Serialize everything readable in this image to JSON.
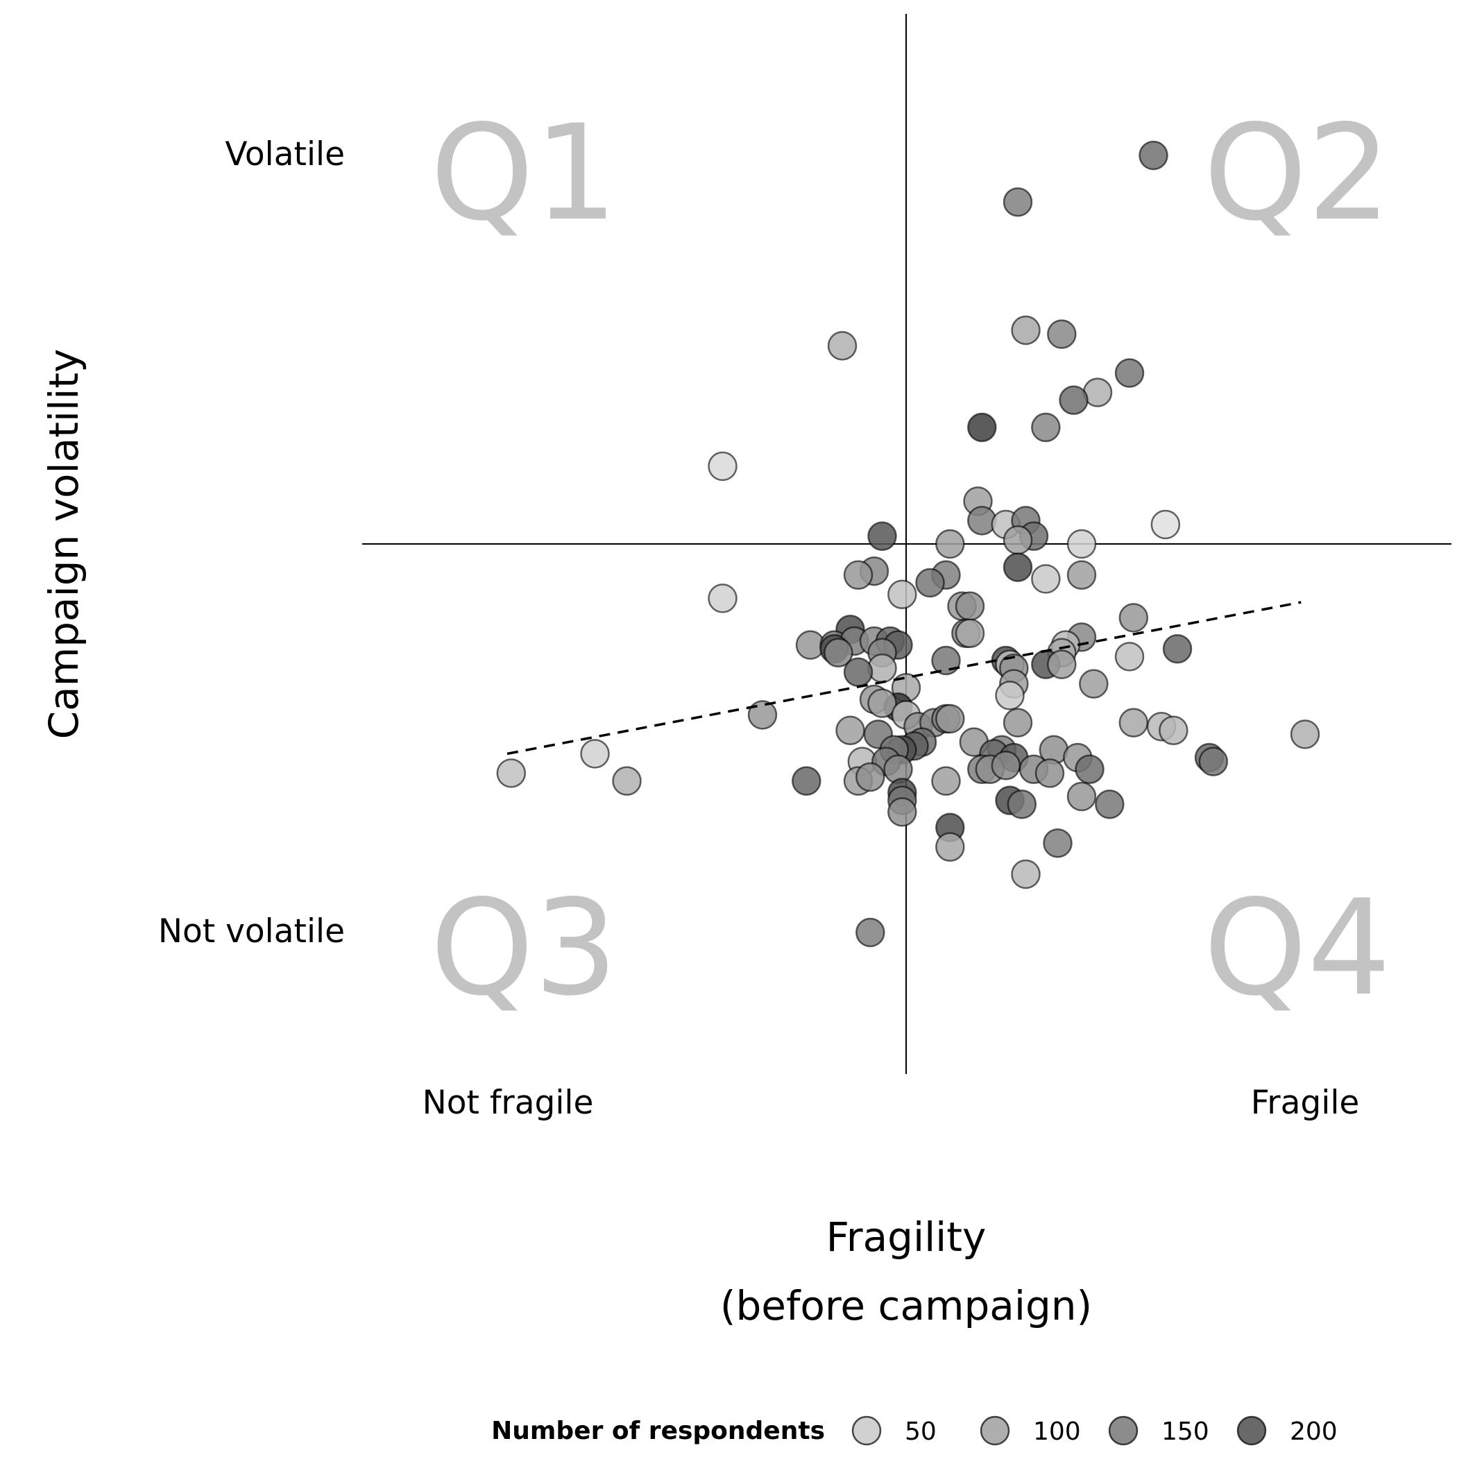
{
  "chart_data": {
    "type": "scatter",
    "title": "",
    "xlabel_line1": "Fragility",
    "xlabel_line2": "(before campaign)",
    "ylabel": "Campaign volatility",
    "x_low_label": "Not fragile",
    "x_high_label": "Fragile",
    "y_high_label": "Volatile",
    "y_low_label": "Not volatile",
    "xlim": [
      -1,
      1
    ],
    "ylim": [
      -1,
      1
    ],
    "grid": false,
    "reference_lines": {
      "x": 0,
      "y": 0
    },
    "quadrants": [
      {
        "label": "Q1",
        "position": "top-left"
      },
      {
        "label": "Q2",
        "position": "top-right"
      },
      {
        "label": "Q3",
        "position": "bottom-left"
      },
      {
        "label": "Q4",
        "position": "bottom-right"
      }
    ],
    "trend_line": {
      "style": "dashed",
      "x": [
        -1.0,
        0.99
      ],
      "y": [
        -0.54,
        -0.15
      ]
    },
    "legend": {
      "title": "Number of respondents",
      "position": "bottom",
      "items": [
        {
          "label": "50",
          "value": 50
        },
        {
          "label": "100",
          "value": 100
        },
        {
          "label": "150",
          "value": 150
        },
        {
          "label": "200",
          "value": 200
        }
      ]
    },
    "points": [
      {
        "x": 0.62,
        "y": 1.0,
        "n": 160
      },
      {
        "x": 0.28,
        "y": 0.88,
        "n": 140
      },
      {
        "x": 0.3,
        "y": 0.55,
        "n": 90
      },
      {
        "x": 0.39,
        "y": 0.54,
        "n": 130
      },
      {
        "x": 0.56,
        "y": 0.44,
        "n": 150
      },
      {
        "x": -0.16,
        "y": 0.51,
        "n": 80
      },
      {
        "x": 0.48,
        "y": 0.39,
        "n": 80
      },
      {
        "x": 0.42,
        "y": 0.37,
        "n": 160
      },
      {
        "x": 0.19,
        "y": 0.3,
        "n": 220
      },
      {
        "x": 0.35,
        "y": 0.3,
        "n": 130
      },
      {
        "x": -0.46,
        "y": 0.2,
        "n": 30
      },
      {
        "x": 0.18,
        "y": 0.11,
        "n": 100
      },
      {
        "x": 0.19,
        "y": 0.06,
        "n": 140
      },
      {
        "x": 0.25,
        "y": 0.05,
        "n": 60
      },
      {
        "x": 0.3,
        "y": 0.06,
        "n": 150
      },
      {
        "x": 0.32,
        "y": 0.02,
        "n": 160
      },
      {
        "x": 0.65,
        "y": 0.05,
        "n": 20
      },
      {
        "x": 0.28,
        "y": 0.01,
        "n": 100
      },
      {
        "x": 0.44,
        "y": 0.0,
        "n": 40
      },
      {
        "x": 0.11,
        "y": 0.0,
        "n": 100
      },
      {
        "x": -0.06,
        "y": 0.02,
        "n": 190
      },
      {
        "x": 0.28,
        "y": -0.06,
        "n": 200
      },
      {
        "x": -0.08,
        "y": -0.07,
        "n": 130
      },
      {
        "x": -0.12,
        "y": -0.08,
        "n": 110
      },
      {
        "x": 0.1,
        "y": -0.08,
        "n": 140
      },
      {
        "x": 0.35,
        "y": -0.09,
        "n": 50
      },
      {
        "x": 0.44,
        "y": -0.08,
        "n": 100
      },
      {
        "x": 0.06,
        "y": -0.1,
        "n": 150
      },
      {
        "x": -0.01,
        "y": -0.13,
        "n": 60
      },
      {
        "x": -0.46,
        "y": -0.14,
        "n": 40
      },
      {
        "x": 0.14,
        "y": -0.16,
        "n": 110
      },
      {
        "x": 0.16,
        "y": -0.16,
        "n": 120
      },
      {
        "x": 0.57,
        "y": -0.19,
        "n": 110
      },
      {
        "x": 0.15,
        "y": -0.23,
        "n": 130
      },
      {
        "x": 0.16,
        "y": -0.23,
        "n": 90
      },
      {
        "x": -0.14,
        "y": -0.22,
        "n": 200
      },
      {
        "x": -0.24,
        "y": -0.26,
        "n": 110
      },
      {
        "x": -0.18,
        "y": -0.26,
        "n": 150
      },
      {
        "x": -0.13,
        "y": -0.25,
        "n": 140
      },
      {
        "x": -0.08,
        "y": -0.25,
        "n": 130
      },
      {
        "x": -0.04,
        "y": -0.25,
        "n": 170
      },
      {
        "x": -0.02,
        "y": -0.26,
        "n": 180
      },
      {
        "x": -0.18,
        "y": -0.27,
        "n": 200
      },
      {
        "x": -0.17,
        "y": -0.28,
        "n": 130
      },
      {
        "x": -0.06,
        "y": -0.28,
        "n": 130
      },
      {
        "x": 0.44,
        "y": -0.24,
        "n": 130
      },
      {
        "x": 0.4,
        "y": -0.26,
        "n": 70
      },
      {
        "x": 0.68,
        "y": -0.27,
        "n": 170
      },
      {
        "x": 0.39,
        "y": -0.28,
        "n": 90
      },
      {
        "x": 0.56,
        "y": -0.29,
        "n": 60
      },
      {
        "x": 0.1,
        "y": -0.3,
        "n": 150
      },
      {
        "x": 0.25,
        "y": -0.3,
        "n": 200
      },
      {
        "x": 0.35,
        "y": -0.31,
        "n": 190
      },
      {
        "x": 0.39,
        "y": -0.31,
        "n": 100
      },
      {
        "x": 0.26,
        "y": -0.31,
        "n": 60
      },
      {
        "x": 0.27,
        "y": -0.32,
        "n": 120
      },
      {
        "x": -0.06,
        "y": -0.32,
        "n": 80
      },
      {
        "x": -0.12,
        "y": -0.33,
        "n": 170
      },
      {
        "x": 0.47,
        "y": -0.36,
        "n": 100
      },
      {
        "x": 0.27,
        "y": -0.36,
        "n": 100
      },
      {
        "x": 0.26,
        "y": -0.39,
        "n": 50
      },
      {
        "x": 0.0,
        "y": -0.37,
        "n": 90
      },
      {
        "x": -0.08,
        "y": -0.4,
        "n": 110
      },
      {
        "x": -0.02,
        "y": -0.42,
        "n": 230
      },
      {
        "x": -0.06,
        "y": -0.41,
        "n": 100
      },
      {
        "x": -0.36,
        "y": -0.44,
        "n": 110
      },
      {
        "x": 0.0,
        "y": -0.44,
        "n": 70
      },
      {
        "x": 0.03,
        "y": -0.47,
        "n": 120
      },
      {
        "x": 0.07,
        "y": -0.46,
        "n": 130
      },
      {
        "x": 0.1,
        "y": -0.45,
        "n": 140
      },
      {
        "x": 0.11,
        "y": -0.45,
        "n": 110
      },
      {
        "x": 0.28,
        "y": -0.46,
        "n": 110
      },
      {
        "x": 0.57,
        "y": -0.46,
        "n": 90
      },
      {
        "x": 0.64,
        "y": -0.47,
        "n": 70
      },
      {
        "x": 0.67,
        "y": -0.48,
        "n": 70
      },
      {
        "x": 1.0,
        "y": -0.49,
        "n": 80
      },
      {
        "x": -0.14,
        "y": -0.48,
        "n": 100
      },
      {
        "x": -0.07,
        "y": -0.49,
        "n": 150
      },
      {
        "x": 0.17,
        "y": -0.51,
        "n": 110
      },
      {
        "x": 0.04,
        "y": -0.51,
        "n": 160
      },
      {
        "x": 0.02,
        "y": -0.52,
        "n": 180
      },
      {
        "x": -0.01,
        "y": -0.53,
        "n": 200
      },
      {
        "x": -0.03,
        "y": -0.53,
        "n": 150
      },
      {
        "x": 0.24,
        "y": -0.53,
        "n": 140
      },
      {
        "x": 0.22,
        "y": -0.54,
        "n": 170
      },
      {
        "x": 0.27,
        "y": -0.55,
        "n": 180
      },
      {
        "x": 0.37,
        "y": -0.53,
        "n": 120
      },
      {
        "x": 0.43,
        "y": -0.55,
        "n": 110
      },
      {
        "x": 0.76,
        "y": -0.55,
        "n": 170
      },
      {
        "x": 0.77,
        "y": -0.56,
        "n": 150
      },
      {
        "x": -0.78,
        "y": -0.54,
        "n": 40
      },
      {
        "x": -0.11,
        "y": -0.56,
        "n": 70
      },
      {
        "x": -0.05,
        "y": -0.56,
        "n": 150
      },
      {
        "x": -0.02,
        "y": -0.58,
        "n": 130
      },
      {
        "x": 0.19,
        "y": -0.58,
        "n": 140
      },
      {
        "x": 0.21,
        "y": -0.58,
        "n": 120
      },
      {
        "x": 0.25,
        "y": -0.57,
        "n": 130
      },
      {
        "x": 0.32,
        "y": -0.58,
        "n": 130
      },
      {
        "x": 0.36,
        "y": -0.59,
        "n": 120
      },
      {
        "x": 0.46,
        "y": -0.58,
        "n": 160
      },
      {
        "x": -0.99,
        "y": -0.59,
        "n": 60
      },
      {
        "x": -0.7,
        "y": -0.61,
        "n": 80
      },
      {
        "x": -0.25,
        "y": -0.61,
        "n": 170
      },
      {
        "x": -0.12,
        "y": -0.61,
        "n": 100
      },
      {
        "x": -0.09,
        "y": -0.6,
        "n": 120
      },
      {
        "x": 0.1,
        "y": -0.61,
        "n": 100
      },
      {
        "x": -0.01,
        "y": -0.64,
        "n": 200
      },
      {
        "x": -0.01,
        "y": -0.66,
        "n": 150
      },
      {
        "x": 0.26,
        "y": -0.66,
        "n": 200
      },
      {
        "x": 0.29,
        "y": -0.67,
        "n": 150
      },
      {
        "x": 0.44,
        "y": -0.65,
        "n": 110
      },
      {
        "x": 0.51,
        "y": -0.67,
        "n": 150
      },
      {
        "x": -0.01,
        "y": -0.69,
        "n": 120
      },
      {
        "x": 0.11,
        "y": -0.73,
        "n": 200
      },
      {
        "x": 0.11,
        "y": -0.78,
        "n": 90
      },
      {
        "x": 0.38,
        "y": -0.77,
        "n": 140
      },
      {
        "x": 0.3,
        "y": -0.85,
        "n": 70
      },
      {
        "x": -0.09,
        "y": -1.0,
        "n": 140
      }
    ]
  }
}
